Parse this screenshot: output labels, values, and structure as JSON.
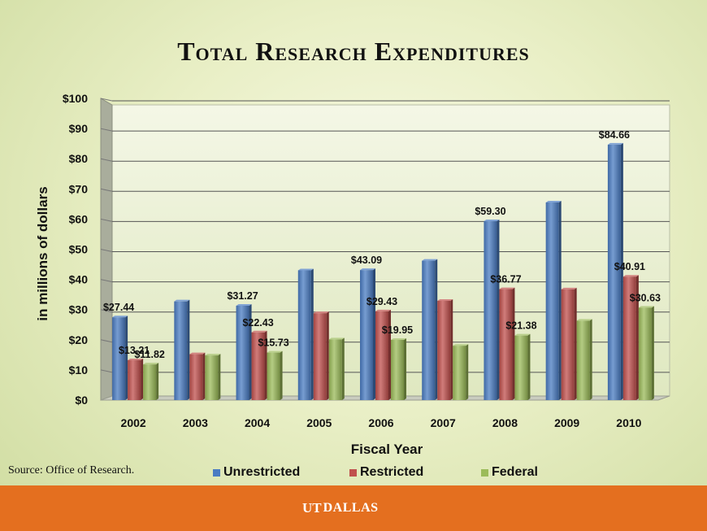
{
  "title": "Total Research Expenditures",
  "source": "Source: Office of Research.",
  "logo": {
    "ut": "UT",
    "name": "DALLAS"
  },
  "chart_data": {
    "type": "bar",
    "title": "Total Research Expenditures",
    "xlabel": "Fiscal Year",
    "ylabel": "in millions of dollars",
    "ylim": [
      0,
      100
    ],
    "yticks": [
      "$0",
      "$10",
      "$20",
      "$30",
      "$40",
      "$50",
      "$60",
      "$70",
      "$80",
      "$90",
      "$100"
    ],
    "ytick_values": [
      0,
      10,
      20,
      30,
      40,
      50,
      60,
      70,
      80,
      90,
      100
    ],
    "grid": true,
    "legend": "bottom",
    "categories": [
      "2002",
      "2003",
      "2004",
      "2005",
      "2006",
      "2007",
      "2008",
      "2009",
      "2010"
    ],
    "series": [
      {
        "name": "Unrestricted",
        "color": "#4a7cc2",
        "values": [
          27.44,
          32.7,
          31.27,
          43.0,
          43.09,
          46.2,
          59.3,
          65.5,
          84.66
        ],
        "labels": [
          "$27.44",
          "",
          "$31.27",
          "",
          "$43.09",
          "",
          "$59.30",
          "",
          "$84.66"
        ]
      },
      {
        "name": "Restricted",
        "color": "#c0504d",
        "values": [
          13.21,
          15.2,
          22.43,
          28.8,
          29.43,
          32.9,
          36.77,
          36.7,
          40.91
        ],
        "labels": [
          "$13.21",
          "",
          "$22.43",
          "",
          "$29.43",
          "",
          "$36.77",
          "",
          "$40.91"
        ]
      },
      {
        "name": "Federal",
        "color": "#9bbb59",
        "values": [
          11.82,
          14.8,
          15.73,
          20.1,
          19.95,
          18.0,
          21.38,
          26.3,
          30.63
        ],
        "labels": [
          "$11.82",
          "",
          "$15.73",
          "",
          "$19.95",
          "",
          "$21.38",
          "",
          "$30.63"
        ]
      }
    ]
  }
}
